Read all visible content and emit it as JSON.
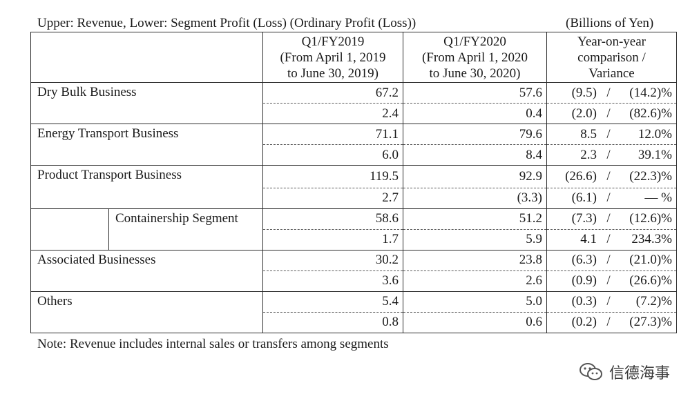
{
  "caption_left": "Upper: Revenue, Lower: Segment Profit (Loss) (Ordinary Profit (Loss))",
  "caption_right": "(Billions of Yen)",
  "headers": {
    "col1": [
      "Q1/FY2019",
      "(From April 1, 2019",
      "to June 30, 2019)"
    ],
    "col2": [
      "Q1/FY2020",
      "(From April 1, 2020",
      "to June 30, 2020)"
    ],
    "col3": [
      "Year-on-year",
      "comparison /",
      "Variance"
    ]
  },
  "rows": [
    {
      "name": "Dry Bulk Business",
      "revenue": [
        "67.2",
        "57.6",
        "(9.5)",
        "/",
        "(14.2)%"
      ],
      "profit": [
        "2.4",
        "0.4",
        "(2.0)",
        "/",
        "(82.6)%"
      ]
    },
    {
      "name": "Energy Transport Business",
      "revenue": [
        "71.1",
        "79.6",
        "8.5",
        "/",
        "12.0%"
      ],
      "profit": [
        "6.0",
        "8.4",
        "2.3",
        "/",
        "39.1%"
      ]
    },
    {
      "name": "Product Transport Business",
      "revenue": [
        "119.5",
        "92.9",
        "(26.6)",
        "/",
        "(22.3)%"
      ],
      "profit": [
        "2.7",
        "(3.3)",
        "(6.1)",
        "/",
        "— %"
      ]
    },
    {
      "name": "Containership Segment",
      "revenue": [
        "58.6",
        "51.2",
        "(7.3)",
        "/",
        "(12.6)%"
      ],
      "profit": [
        "1.7",
        "5.9",
        "4.1",
        "/",
        "234.3%"
      ]
    },
    {
      "name": "Associated Businesses",
      "revenue": [
        "30.2",
        "23.8",
        "(6.3)",
        "/",
        "(21.0)%"
      ],
      "profit": [
        "3.6",
        "2.6",
        "(0.9)",
        "/",
        "(26.6)%"
      ]
    },
    {
      "name": "Others",
      "revenue": [
        "5.4",
        "5.0",
        "(0.3)",
        "/",
        "(7.2)%"
      ],
      "profit": [
        "0.8",
        "0.6",
        "(0.2)",
        "/",
        "(27.3)%"
      ]
    }
  ],
  "note": "Note: Revenue includes internal sales or transfers among segments",
  "watermark": "信德海事"
}
